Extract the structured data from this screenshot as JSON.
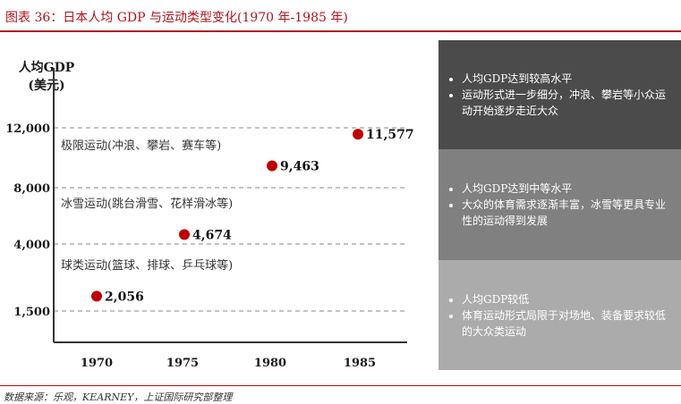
{
  "title": "图表 36：日本人均 GDP 与运动类型变化(1970 年-1985 年)",
  "source": "数据来源：乐观，KEARNEY，上证国际研究部整理",
  "colors": {
    "accent": "#b0121b",
    "point": "#c00000",
    "panel_dark": "#4b4b4b",
    "panel_mid": "#808080",
    "panel_light": "#ababab"
  },
  "chart_data": {
    "type": "scatter",
    "ylabel_lines": [
      "人均GDP",
      "(美元)"
    ],
    "x_ticks": [
      "1970",
      "1975",
      "1980",
      "1985"
    ],
    "y_ticks": [
      "1,500",
      "4,000",
      "8,000",
      "12,000"
    ],
    "y_scale": "categorical-levels",
    "grid": "dashed horizontal",
    "points": [
      {
        "x": 1970,
        "y": 2056,
        "label": "2,056"
      },
      {
        "x": 1975,
        "y": 4674,
        "label": "4,674"
      },
      {
        "x": 1980,
        "y": 9463,
        "label": "9,463"
      },
      {
        "x": 1984.9,
        "y": 11577,
        "label": "11,577"
      }
    ],
    "bands": [
      "极限运动(冲浪、攀岩、赛车等)",
      "冰雪运动(跳台滑雪、花样滑冰等)",
      "球类运动(篮球、排球、乒乓球等)"
    ]
  },
  "panels": [
    {
      "items": [
        "人均GDP达到较高水平",
        "运动形式进一步细分，冲浪、攀岩等小众运动开始逐步走近大众"
      ]
    },
    {
      "items": [
        "人均GDP达到中等水平",
        "大众的体育需求逐渐丰富，冰雪等更具专业性的运动得到发展"
      ]
    },
    {
      "items": [
        "人均GDP较低",
        "体育运动形式局限于对场地、装备要求较低的大众类运动"
      ]
    }
  ]
}
